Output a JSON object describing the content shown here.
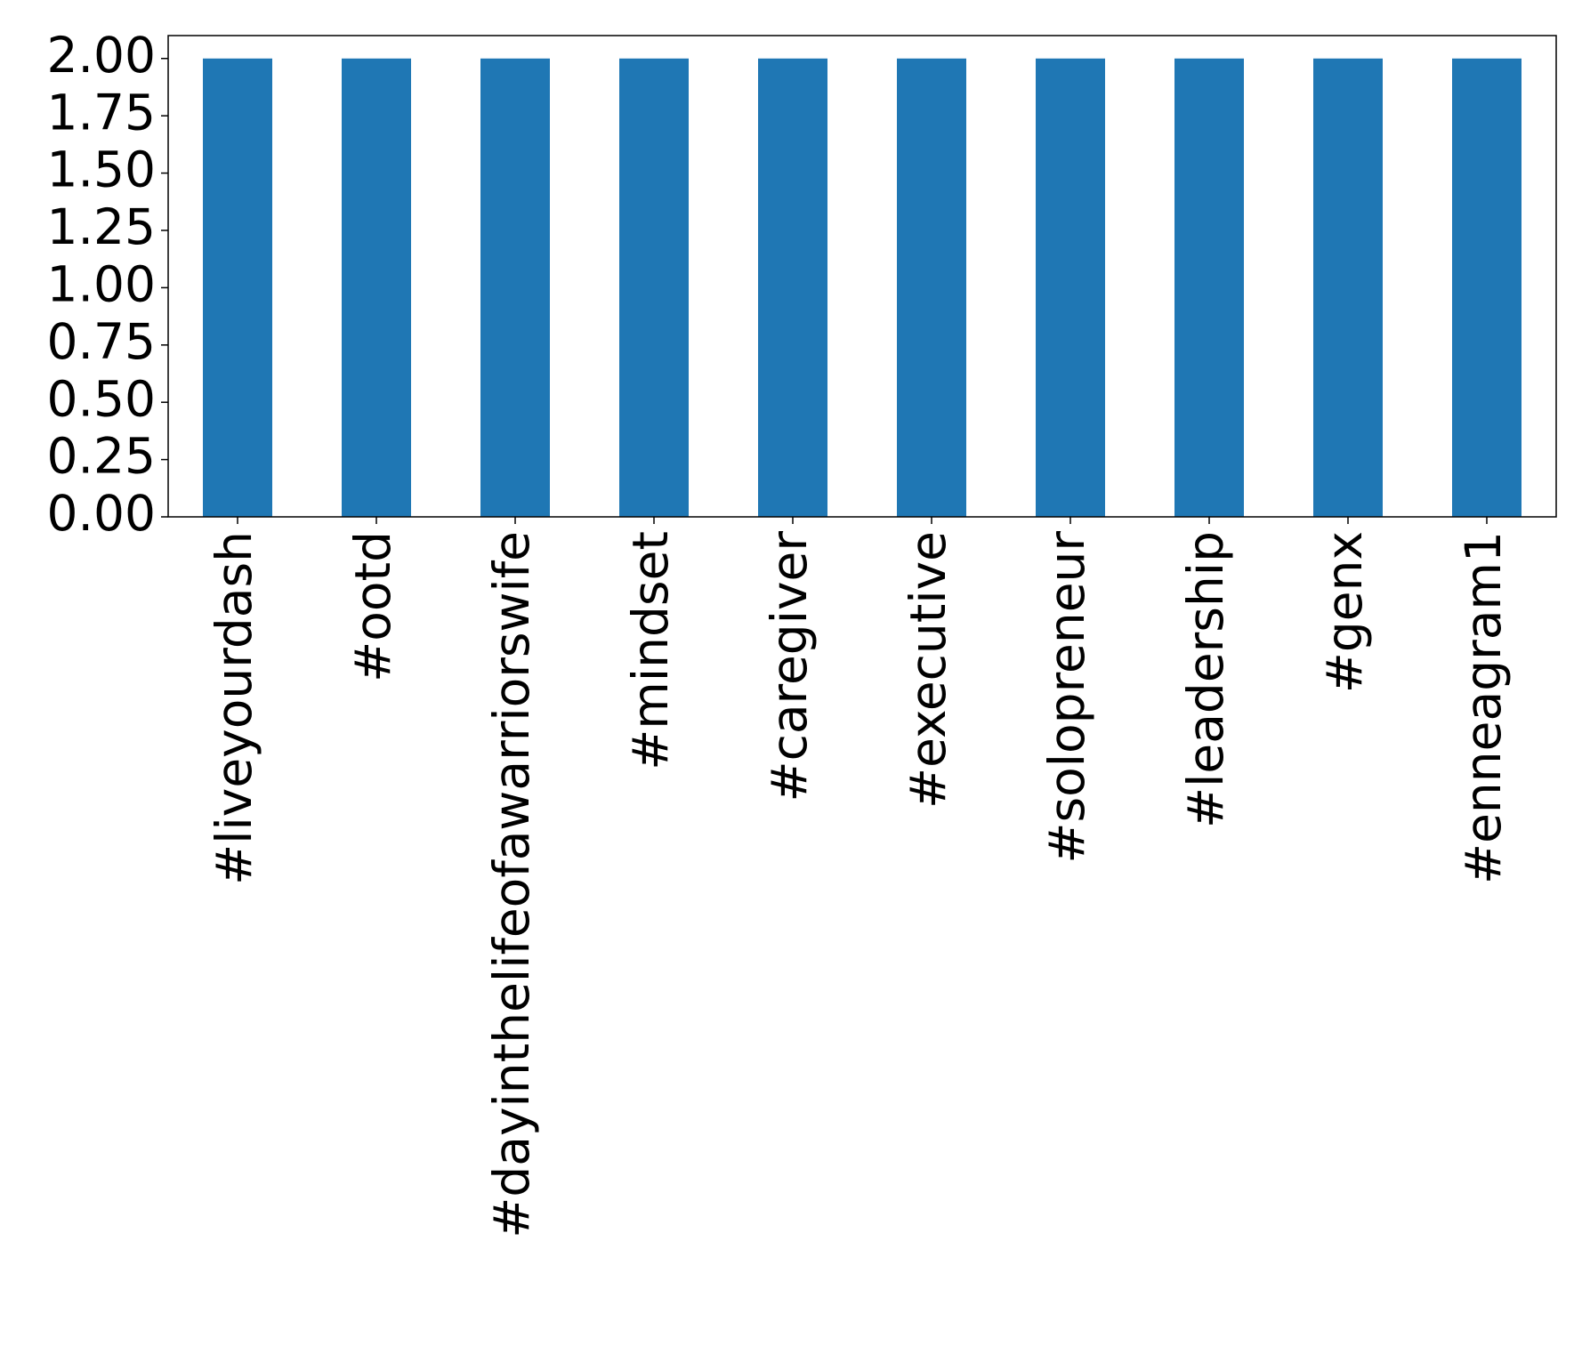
{
  "chart_data": {
    "type": "bar",
    "categories": [
      "#liveyourdash",
      "#ootd",
      "#dayinthelifeofawarriorswife",
      "#mindset",
      "#caregiver",
      "#executive",
      "#solopreneur",
      "#leadership",
      "#genx",
      "#enneagram1"
    ],
    "values": [
      2,
      2,
      2,
      2,
      2,
      2,
      2,
      2,
      2,
      2
    ],
    "color": "#1f77b4",
    "ylim": [
      0,
      2.1
    ],
    "yticks": [
      {
        "value": 0,
        "label": "0.00"
      },
      {
        "value": 0.25,
        "label": "0.25"
      },
      {
        "value": 0.5,
        "label": "0.50"
      },
      {
        "value": 0.75,
        "label": "0.75"
      },
      {
        "value": 1,
        "label": "1.00"
      },
      {
        "value": 1.25,
        "label": "1.25"
      },
      {
        "value": 1.5,
        "label": "1.50"
      },
      {
        "value": 1.75,
        "label": "1.75"
      },
      {
        "value": 2,
        "label": "2.00"
      }
    ],
    "grid": false
  }
}
